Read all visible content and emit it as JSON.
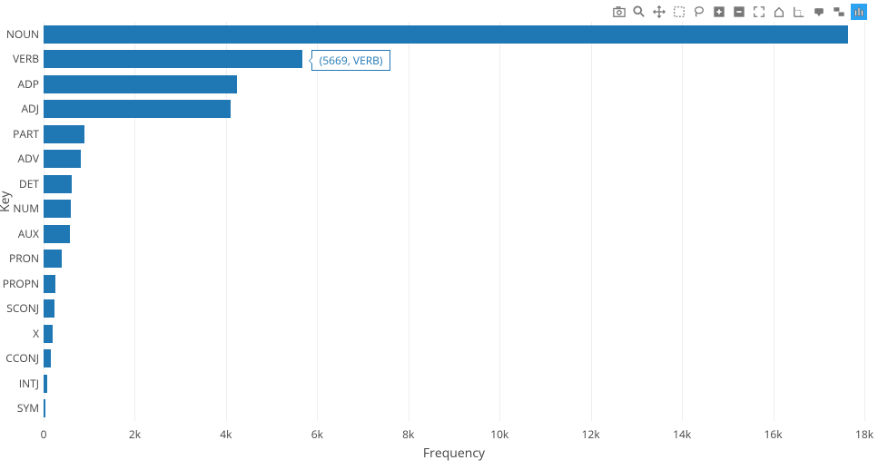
{
  "chart": {
    "type": "bar",
    "orientation": "horizontal",
    "xlabel": "Frequency",
    "ylabel": "Key",
    "bar_color": "#1f77b4",
    "grid_color": "#eeeeee",
    "background_color": "#ffffff",
    "label_fontsize": 14,
    "tick_fontsize": 12,
    "xlim": [
      0,
      18000
    ],
    "xtick_step": 2000,
    "xtick_labels": [
      "0",
      "2k",
      "4k",
      "6k",
      "8k",
      "10k",
      "12k",
      "14k",
      "16k",
      "18k"
    ],
    "categories": [
      "NOUN",
      "VERB",
      "ADP",
      "ADJ",
      "PART",
      "ADV",
      "DET",
      "NUM",
      "AUX",
      "PRON",
      "PROPN",
      "SCONJ",
      "X",
      "CCONJ",
      "INTJ",
      "SYM"
    ],
    "values": [
      17650,
      5669,
      4250,
      4100,
      900,
      820,
      620,
      600,
      580,
      400,
      260,
      240,
      200,
      150,
      80,
      30
    ],
    "tooltip": {
      "visible_index": 1,
      "text": "(5669, VERB)"
    }
  },
  "toolbar": {
    "icons": [
      "camera",
      "zoom",
      "pan",
      "box-select",
      "lasso",
      "zoom-in",
      "zoom-out",
      "autoscale",
      "reset",
      "spike",
      "hover-closest",
      "hover-compare",
      "logo"
    ]
  }
}
